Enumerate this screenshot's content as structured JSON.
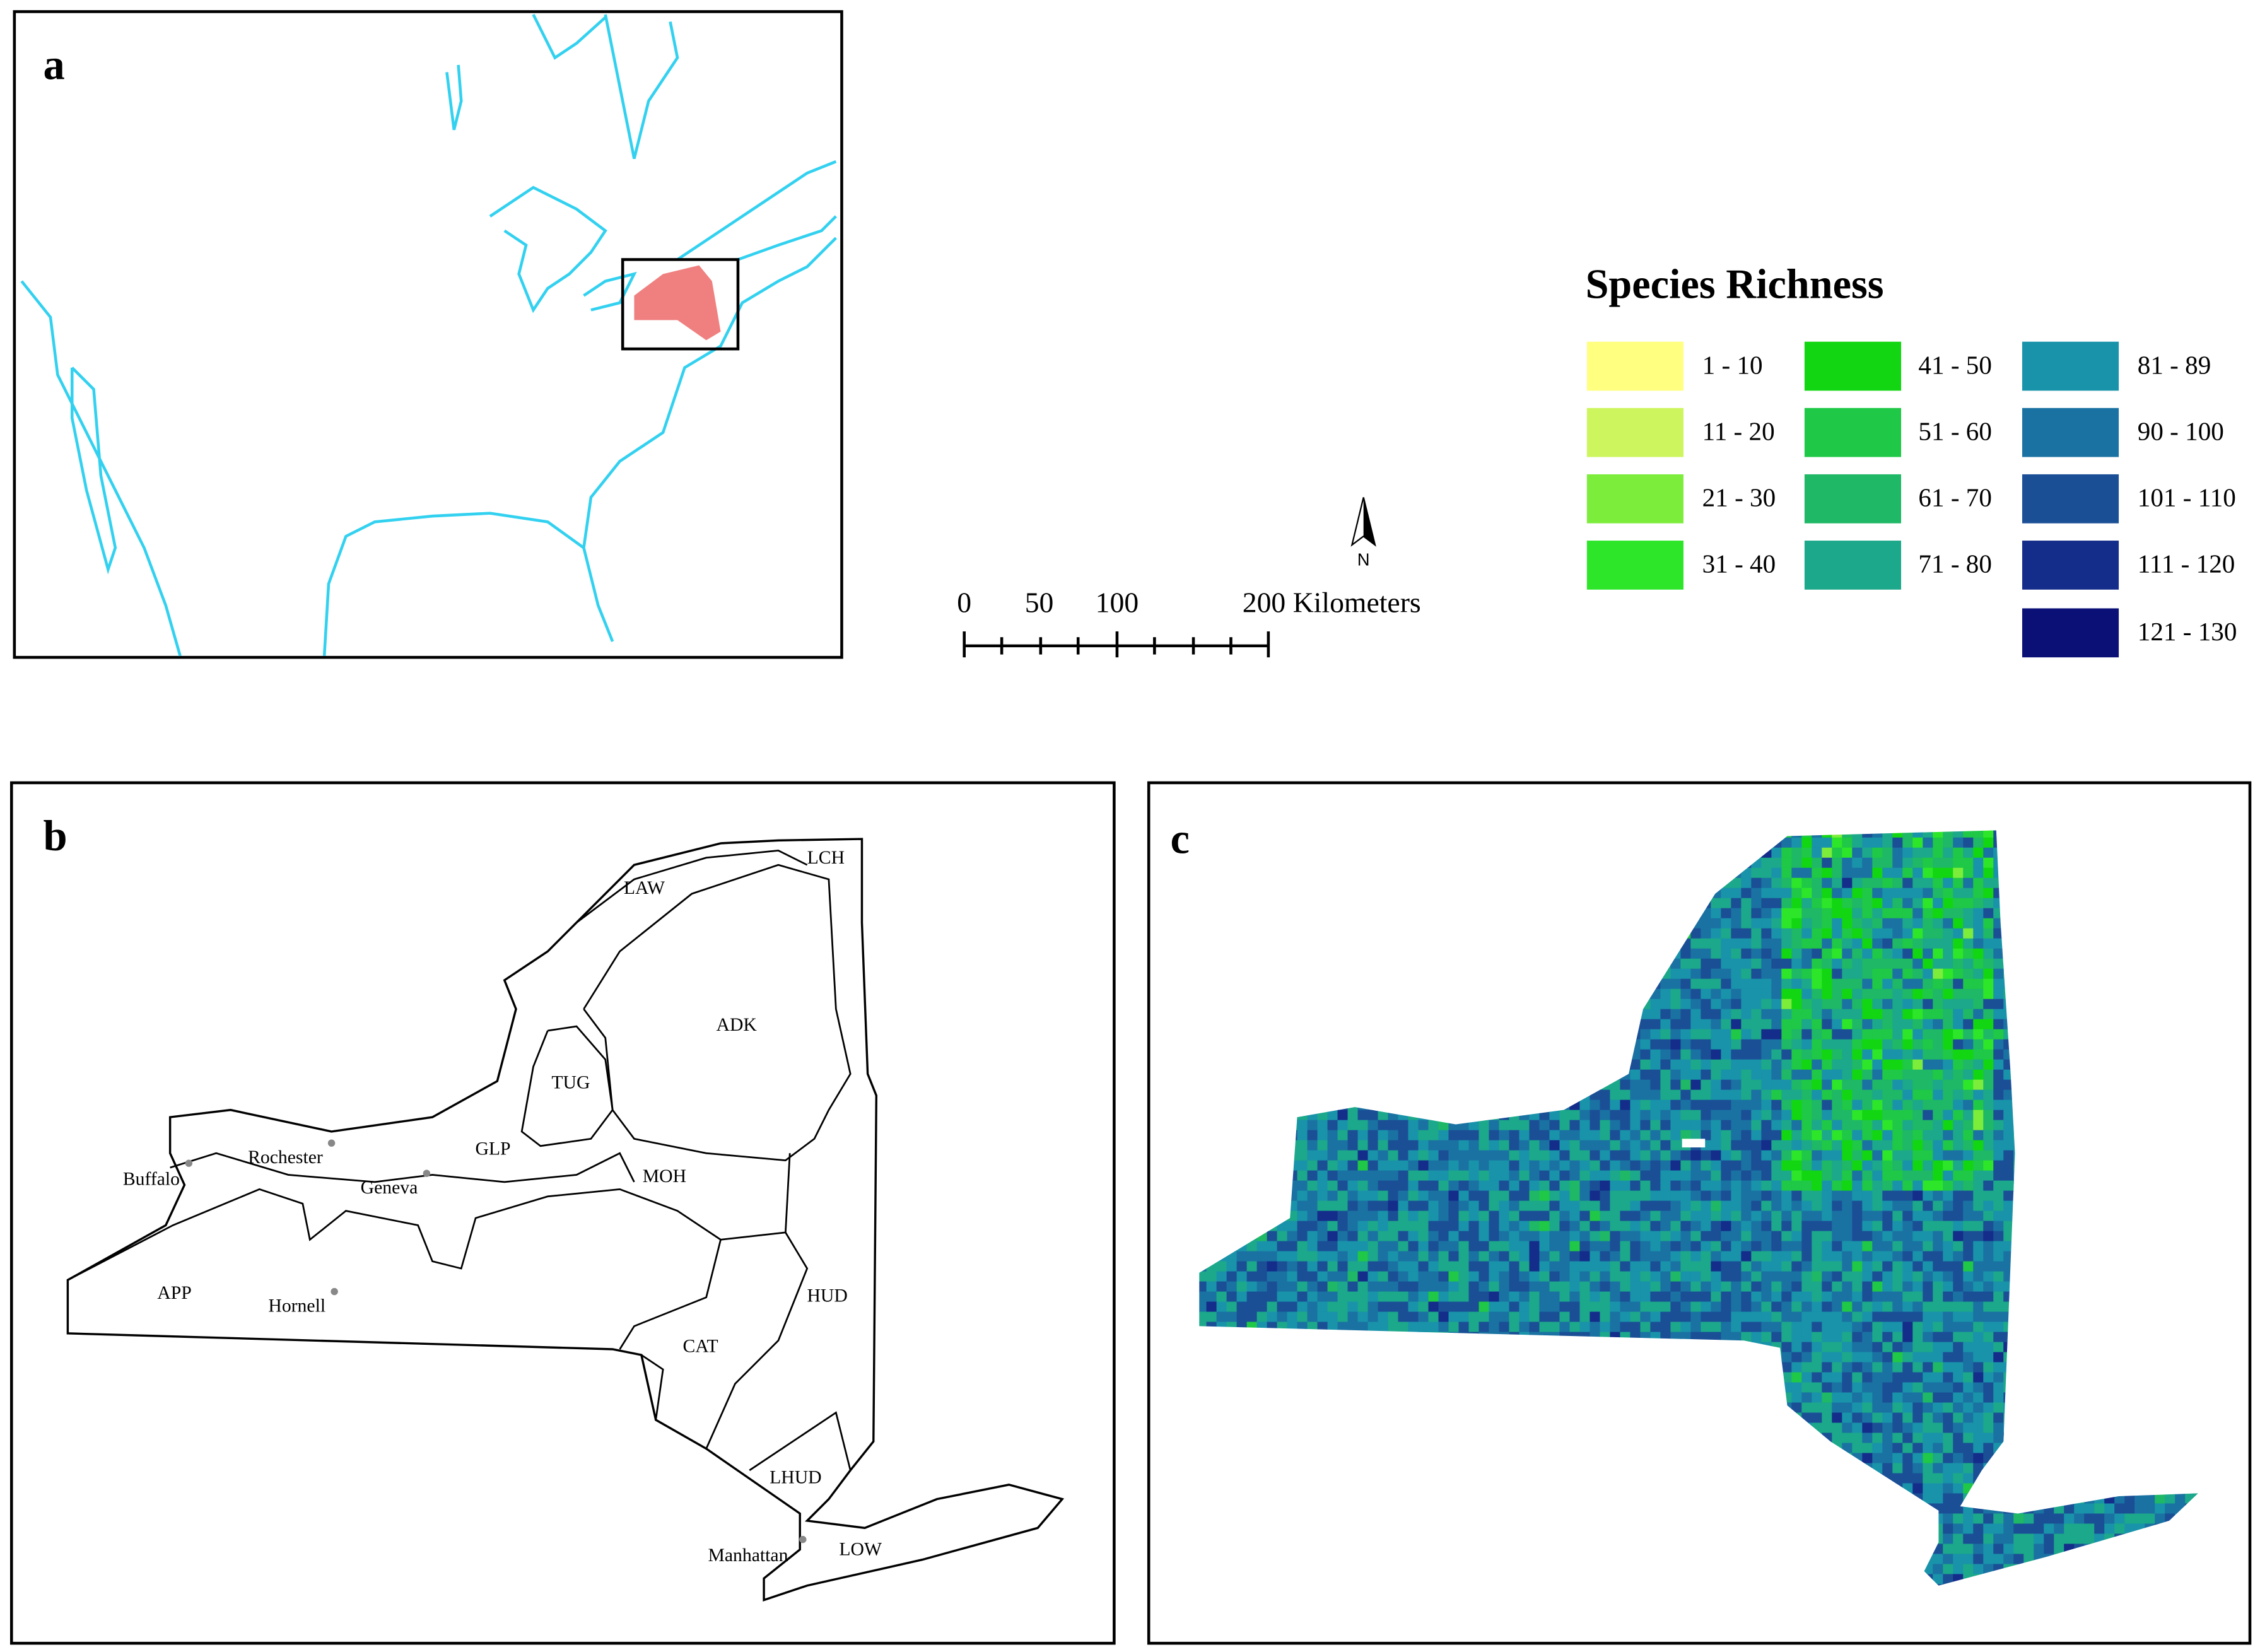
{
  "panels": {
    "a": {
      "label": "a"
    },
    "b": {
      "label": "b",
      "regions": [
        "LAW",
        "LCH",
        "ADK",
        "TUG",
        "GLP",
        "MOH",
        "HUD",
        "APP",
        "CAT",
        "LHUD",
        "LOW"
      ],
      "cities": [
        "Buffalo",
        "Rochester",
        "Geneva",
        "Hornell",
        "Manhattan"
      ]
    },
    "c": {
      "label": "c"
    }
  },
  "legend": {
    "title": "Species Richness",
    "items": [
      {
        "label": "1 - 10",
        "color": "#ffff80"
      },
      {
        "label": "11 - 20",
        "color": "#cdf55e"
      },
      {
        "label": "21 - 30",
        "color": "#7ded3c"
      },
      {
        "label": "31 - 40",
        "color": "#2de62a"
      },
      {
        "label": "41 - 50",
        "color": "#12d612"
      },
      {
        "label": "51 - 60",
        "color": "#1fc846"
      },
      {
        "label": "61 - 70",
        "color": "#1eb866"
      },
      {
        "label": "71 - 80",
        "color": "#1ca88a"
      },
      {
        "label": "81 - 89",
        "color": "#1993aa"
      },
      {
        "label": "90 - 100",
        "color": "#1a72a2"
      },
      {
        "label": "101 - 110",
        "color": "#1a4f96"
      },
      {
        "label": "111 - 120",
        "color": "#142c8a"
      },
      {
        "label": "121 - 130",
        "color": "#0a1075"
      }
    ]
  },
  "scale_bar": {
    "labels": [
      "0",
      "50",
      "100",
      "200 Kilometers"
    ]
  },
  "north_arrow": "N"
}
